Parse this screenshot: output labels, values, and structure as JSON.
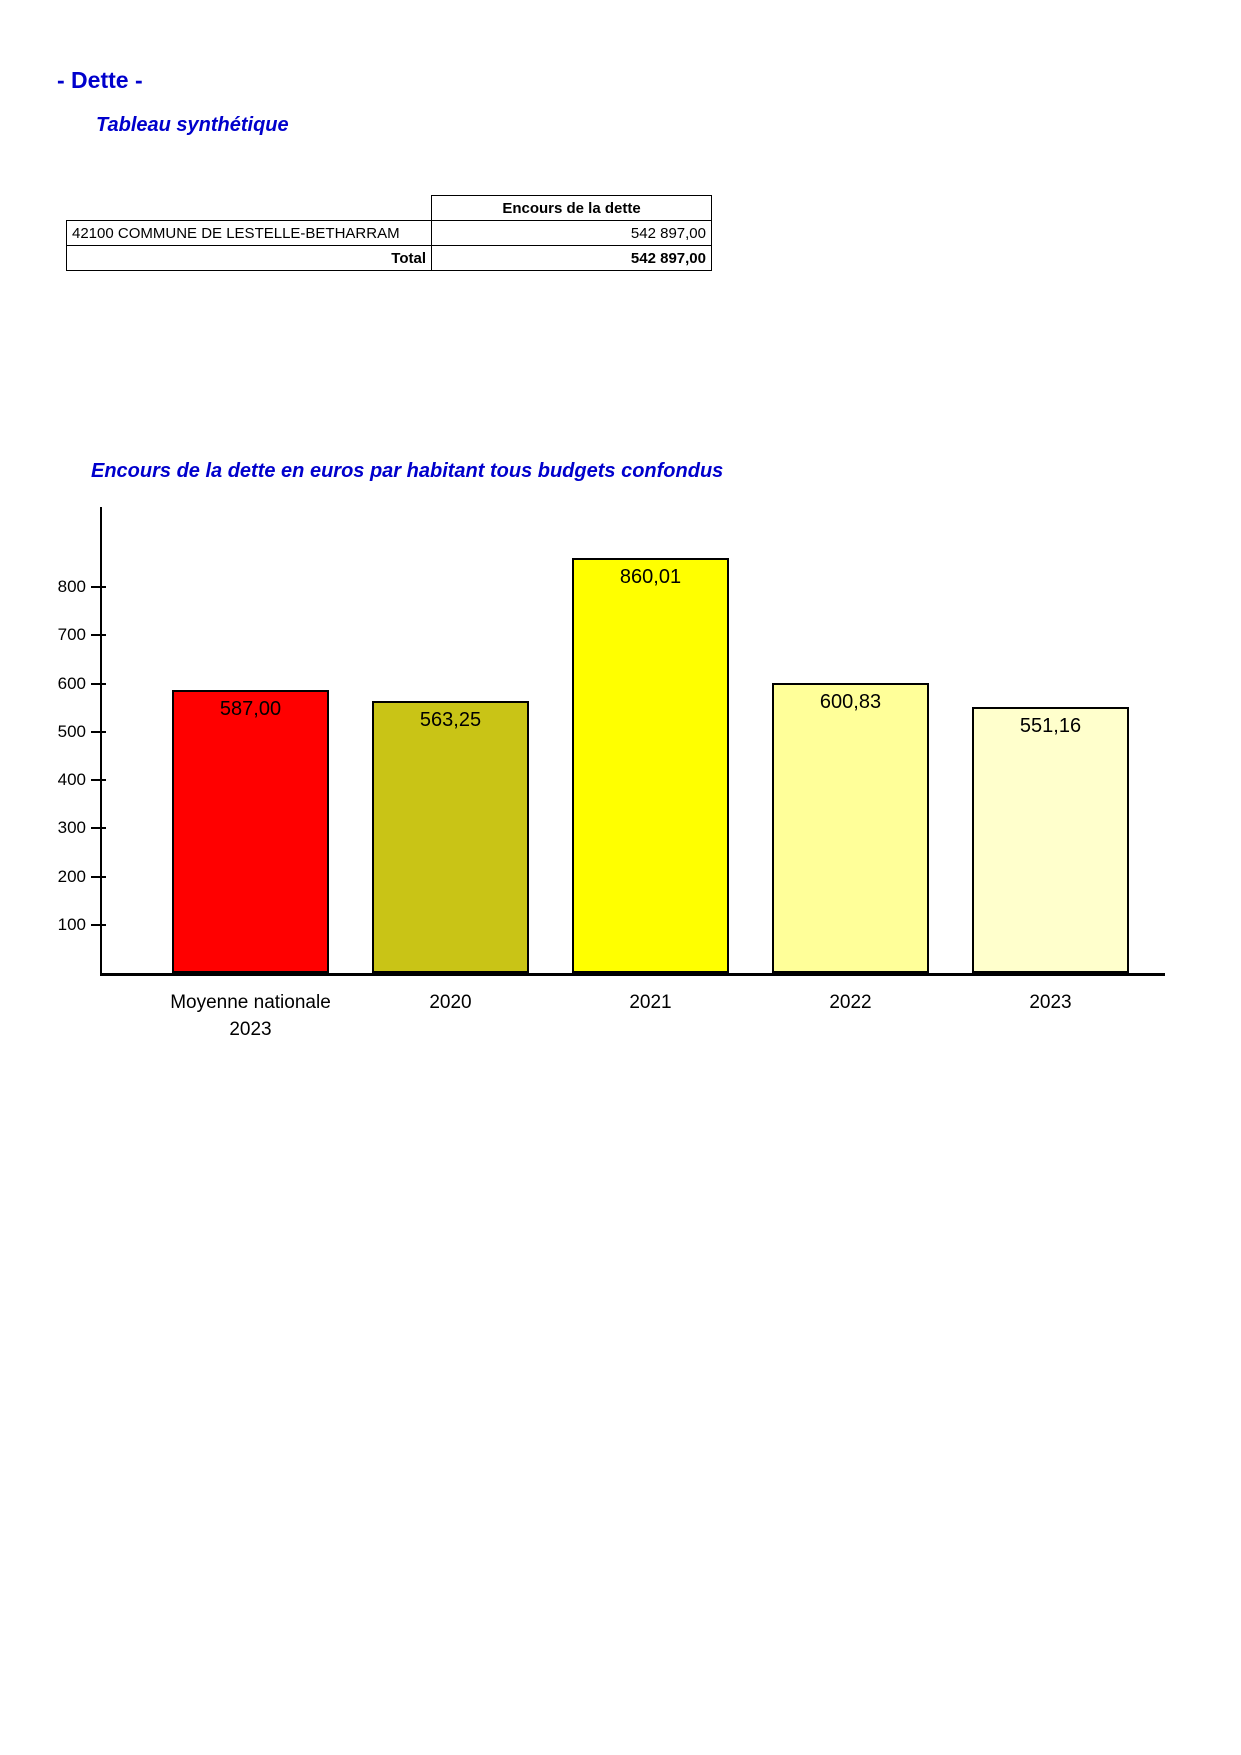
{
  "header": {
    "title": "- Dette -",
    "subtitle": "Tableau synthétique"
  },
  "table": {
    "header": "Encours de la dette",
    "rows": [
      {
        "label": "42100 COMMUNE DE LESTELLE-BETHARRAM",
        "value": "542 897,00"
      }
    ],
    "total_label": "Total",
    "total_value": "542 897,00"
  },
  "colors": {
    "accent_blue": "#0000CC",
    "bar_moyenne": "#FF0000",
    "bar_2020": "#C9C416",
    "bar_2021": "#FFFF00",
    "bar_2022": "#FFFF99",
    "bar_2023": "#FFFFCC"
  },
  "chart_data": {
    "type": "bar",
    "title": "Encours de la dette en euros par habitant tous budgets confondus",
    "categories": [
      "Moyenne nationale\n2023",
      "2020",
      "2021",
      "2022",
      "2023"
    ],
    "values": [
      587.0,
      563.25,
      860.01,
      600.83,
      551.16
    ],
    "value_labels": [
      "587,00",
      "563,25",
      "860,01",
      "600,83",
      "551,16"
    ],
    "bar_colors": [
      "#FF0000",
      "#C9C416",
      "#FFFF00",
      "#FFFF99",
      "#FFFFCC"
    ],
    "xlabel": "",
    "ylabel": "",
    "yticks": [
      100,
      200,
      300,
      400,
      500,
      600,
      700,
      800
    ],
    "ylim": [
      0,
      965
    ],
    "grid": false,
    "legend": false,
    "value_labels_position": "inside-top"
  }
}
